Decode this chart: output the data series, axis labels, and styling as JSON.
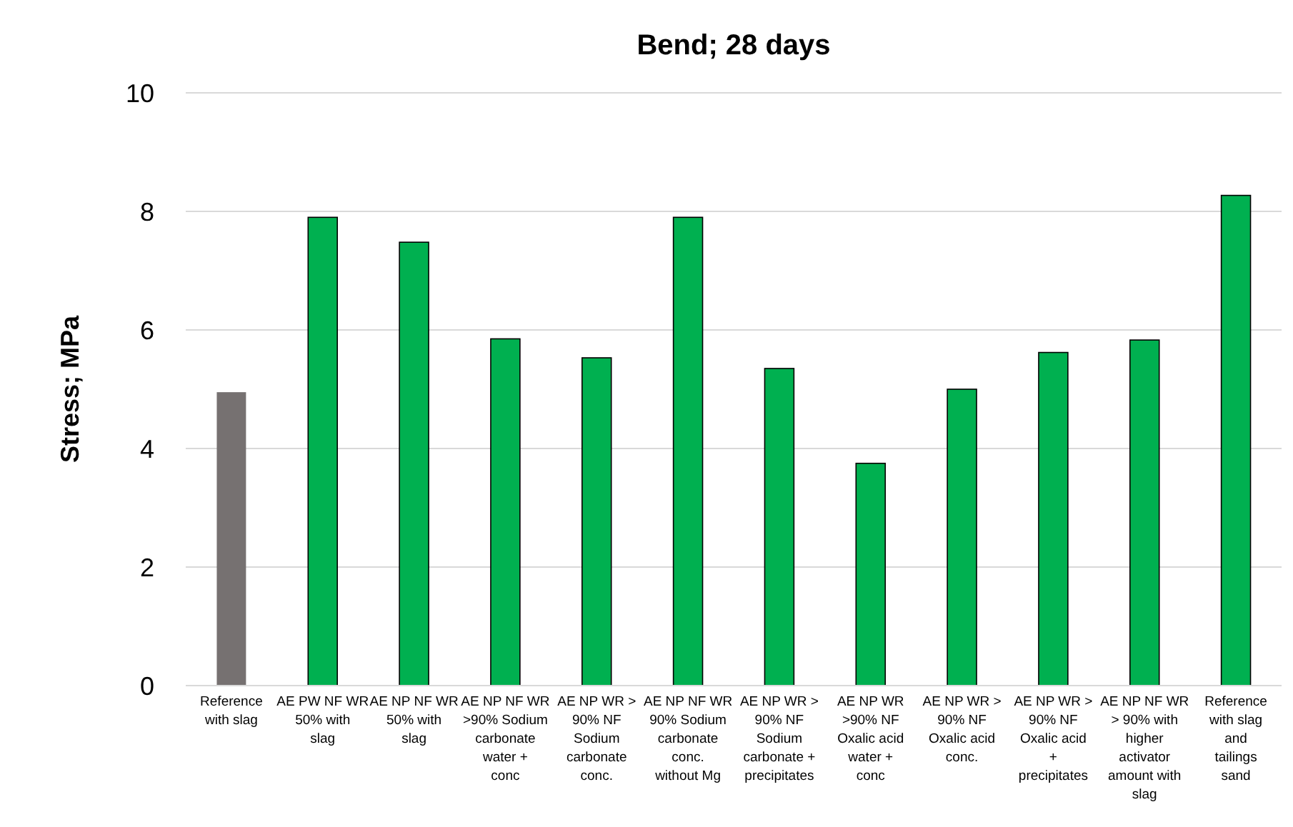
{
  "chart_data": {
    "type": "bar",
    "title": "Bend; 28 days",
    "ylabel": "Stress; MPa",
    "categories": [
      "Reference with slag",
      "AE PW NF WR 50% with slag",
      "AE NP NF WR 50% with slag",
      "AE NP NF WR >90% Sodium carbonate water + conc",
      "AE NP WR > 90% NF Sodium carbonate conc.",
      "AE NP NF WR 90% Sodium carbonate conc. without Mg",
      "AE NP WR > 90% NF Sodium carbonate + precipitates",
      "AE NP WR >90% NF Oxalic acid water + conc",
      "AE NP WR > 90% NF Oxalic acid conc.",
      "AE NP WR > 90% NF Oxalic acid + precipitates",
      "AE NP NF WR > 90% with higher activator amount with slag",
      "Reference with slag and tailings sand"
    ],
    "values": [
      4.95,
      7.9,
      7.48,
      5.85,
      5.53,
      7.9,
      5.35,
      3.75,
      5.0,
      5.62,
      5.83,
      8.27
    ],
    "colors": [
      "#767171",
      "#00b050",
      "#00b050",
      "#00b050",
      "#00b050",
      "#00b050",
      "#00b050",
      "#00b050",
      "#00b050",
      "#00b050",
      "#00b050",
      "#00b050"
    ],
    "ylim": [
      0,
      10
    ],
    "yticks": [
      0,
      2,
      4,
      6,
      8,
      10
    ],
    "grid": "y"
  }
}
